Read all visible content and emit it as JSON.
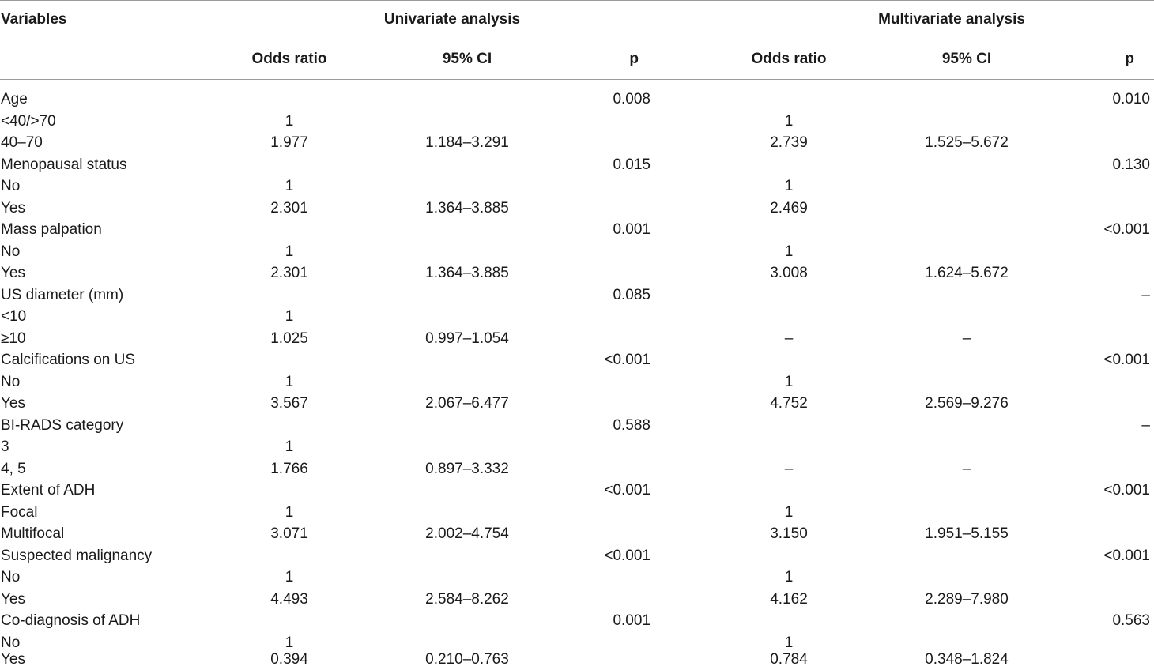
{
  "header": {
    "variables": "Variables",
    "univariate": "Univariate analysis",
    "multivariate": "Multivariate analysis",
    "odds_ratio": "Odds ratio",
    "ci": "95% CI",
    "p": "p"
  },
  "rows": [
    {
      "var": "Age",
      "or1": "",
      "ci1": "",
      "p1": "0.008",
      "or2": "",
      "ci2": "",
      "p2": "0.010"
    },
    {
      "var": "<40/>70",
      "or1": "1",
      "ci1": "",
      "p1": "",
      "or2": "1",
      "ci2": "",
      "p2": ""
    },
    {
      "var": "40–70",
      "or1": "1.977",
      "ci1": "1.184–3.291",
      "p1": "",
      "or2": "2.739",
      "ci2": "1.525–5.672",
      "p2": ""
    },
    {
      "var": "Menopausal status",
      "or1": "",
      "ci1": "",
      "p1": "0.015",
      "or2": "",
      "ci2": "",
      "p2": "0.130"
    },
    {
      "var": "No",
      "or1": "1",
      "ci1": "",
      "p1": "",
      "or2": "1",
      "ci2": "",
      "p2": ""
    },
    {
      "var": "Yes",
      "or1": "2.301",
      "ci1": "1.364–3.885",
      "p1": "",
      "or2": "2.469",
      "ci2": "",
      "p2": ""
    },
    {
      "var": "Mass palpation",
      "or1": "",
      "ci1": "",
      "p1": "0.001",
      "or2": "",
      "ci2": "",
      "p2": "<0.001"
    },
    {
      "var": "No",
      "or1": "1",
      "ci1": "",
      "p1": "",
      "or2": "1",
      "ci2": "",
      "p2": ""
    },
    {
      "var": "Yes",
      "or1": "2.301",
      "ci1": "1.364–3.885",
      "p1": "",
      "or2": "3.008",
      "ci2": "1.624–5.672",
      "p2": ""
    },
    {
      "var": "US diameter (mm)",
      "or1": "",
      "ci1": "",
      "p1": "0.085",
      "or2": "",
      "ci2": "",
      "p2": "–"
    },
    {
      "var": "<10",
      "or1": "1",
      "ci1": "",
      "p1": "",
      "or2": "",
      "ci2": "",
      "p2": ""
    },
    {
      "var": "≥10",
      "or1": "1.025",
      "ci1": "0.997–1.054",
      "p1": "",
      "or2": "–",
      "ci2": "–",
      "p2": ""
    },
    {
      "var": "Calcifications on US",
      "or1": "",
      "ci1": "",
      "p1": "<0.001",
      "or2": "",
      "ci2": "",
      "p2": "<0.001"
    },
    {
      "var": "No",
      "or1": "1",
      "ci1": "",
      "p1": "",
      "or2": "1",
      "ci2": "",
      "p2": ""
    },
    {
      "var": "Yes",
      "or1": "3.567",
      "ci1": "2.067–6.477",
      "p1": "",
      "or2": "4.752",
      "ci2": "2.569–9.276",
      "p2": ""
    },
    {
      "var": "BI-RADS category",
      "or1": "",
      "ci1": "",
      "p1": "0.588",
      "or2": "",
      "ci2": "",
      "p2": "–"
    },
    {
      "var": "3",
      "or1": "1",
      "ci1": "",
      "p1": "",
      "or2": "",
      "ci2": "",
      "p2": ""
    },
    {
      "var": "4, 5",
      "or1": "1.766",
      "ci1": "0.897–3.332",
      "p1": "",
      "or2": "–",
      "ci2": "–",
      "p2": ""
    },
    {
      "var": "Extent of ADH",
      "or1": "",
      "ci1": "",
      "p1": "<0.001",
      "or2": "",
      "ci2": "",
      "p2": "<0.001"
    },
    {
      "var": "Focal",
      "or1": "1",
      "ci1": "",
      "p1": "",
      "or2": "1",
      "ci2": "",
      "p2": ""
    },
    {
      "var": "Multifocal",
      "or1": "3.071",
      "ci1": "2.002–4.754",
      "p1": "",
      "or2": "3.150",
      "ci2": "1.951–5.155",
      "p2": ""
    },
    {
      "var": "Suspected malignancy",
      "or1": "",
      "ci1": "",
      "p1": "<0.001",
      "or2": "",
      "ci2": "",
      "p2": "<0.001"
    },
    {
      "var": "No",
      "or1": "1",
      "ci1": "",
      "p1": "",
      "or2": "1",
      "ci2": "",
      "p2": ""
    },
    {
      "var": "Yes",
      "or1": "4.493",
      "ci1": "2.584–8.262",
      "p1": "",
      "or2": "4.162",
      "ci2": "2.289–7.980",
      "p2": ""
    },
    {
      "var": "Co-diagnosis of ADH",
      "or1": "",
      "ci1": "",
      "p1": "0.001",
      "or2": "",
      "ci2": "",
      "p2": "0.563"
    },
    {
      "var": "No",
      "or1": "1",
      "ci1": "",
      "p1": "",
      "or2": "1",
      "ci2": "",
      "p2": ""
    },
    {
      "var": "Yes",
      "or1": "0.394",
      "ci1": "0.210–0.763",
      "p1": "",
      "or2": "0.784",
      "ci2": "0.348–1.824",
      "p2": ""
    }
  ]
}
